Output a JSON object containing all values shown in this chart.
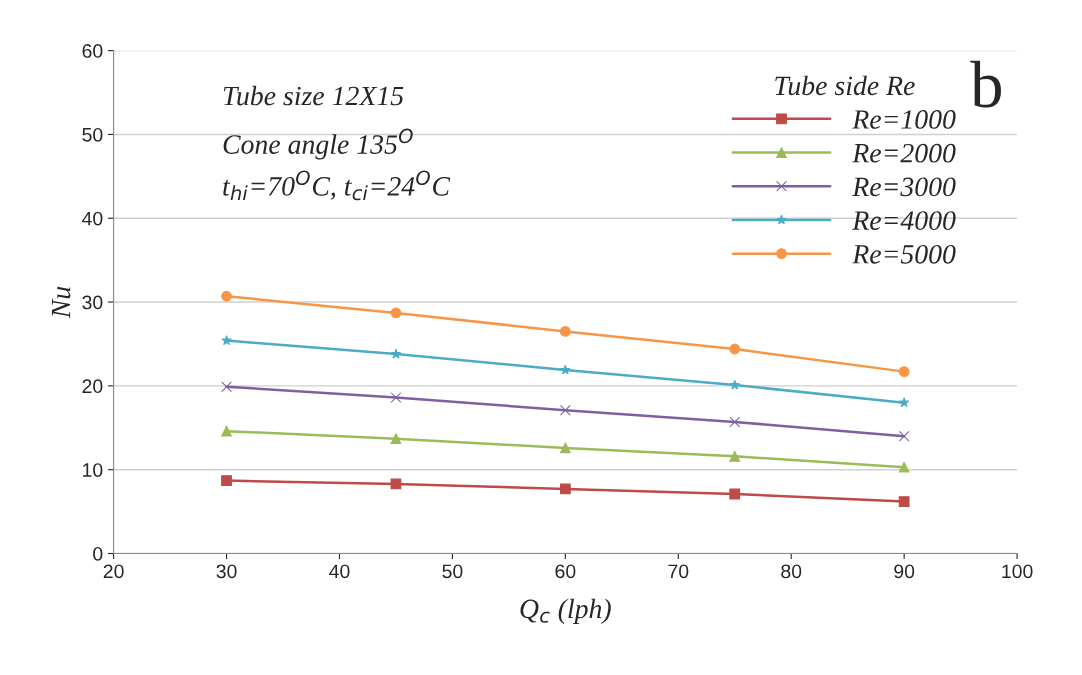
{
  "chart_data": {
    "type": "line",
    "x": [
      30,
      45,
      60,
      75,
      90
    ],
    "series": [
      {
        "name": "Re=1000",
        "color": "#be4b48",
        "marker": "square",
        "values": [
          8.7,
          8.3,
          7.7,
          7.1,
          6.2
        ]
      },
      {
        "name": "Re=2000",
        "color": "#9bbb59",
        "marker": "triangle",
        "values": [
          14.6,
          13.7,
          12.6,
          11.6,
          10.3
        ]
      },
      {
        "name": "Re=3000",
        "color": "#7f5fa0",
        "marker": "cross",
        "values": [
          19.9,
          18.6,
          17.1,
          15.7,
          14.0
        ]
      },
      {
        "name": "Re=4000",
        "color": "#4bacc6",
        "marker": "star",
        "values": [
          25.4,
          23.8,
          21.9,
          20.1,
          18.0
        ]
      },
      {
        "name": "Re=5000",
        "color": "#f79646",
        "marker": "circle",
        "values": [
          30.7,
          28.7,
          26.5,
          24.4,
          21.7
        ]
      }
    ],
    "xlabel": "Q$_{c}$ (lph)",
    "ylabel": "Nu",
    "legend_title": "Tube side Re",
    "annotations": [
      "Tube size 12X15",
      "Cone angle 135$^{O}$",
      "t$_{hi}$=70$^{O}$C, t$_{ci}$=24$^{O}$C",
      "b"
    ],
    "xlim": [
      20,
      100
    ],
    "xticks": [
      20,
      30,
      40,
      50,
      60,
      70,
      80,
      90,
      100
    ],
    "ylim": [
      0,
      60
    ],
    "yticks": [
      0,
      10,
      20,
      30,
      40,
      50,
      60
    ],
    "grid": "y",
    "legend": "top right",
    "line_style": "solid"
  }
}
